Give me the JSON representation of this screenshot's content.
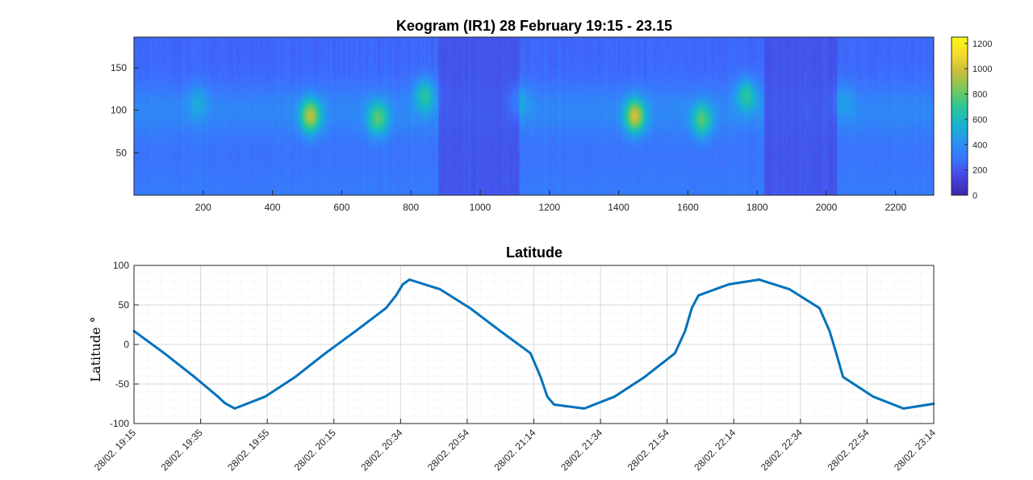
{
  "colors": {
    "series": "#0072BD",
    "axis": "#262626",
    "grid_major": "#d9d9d9",
    "grid_minor": "#ececec",
    "colormap": [
      "#3E26A8",
      "#4744E0",
      "#3C70FF",
      "#2A93F3",
      "#16B4D0",
      "#2BC69A",
      "#75C85E",
      "#C6BE3C",
      "#F6D92C",
      "#F9FB14"
    ]
  },
  "chart_data": [
    {
      "type": "heatmap",
      "title": "Keogram (IR1) 28 February 19:15 - 23.15",
      "xlabel": "",
      "ylabel": "",
      "xlim": [
        0,
        2310
      ],
      "ylim": [
        0,
        186
      ],
      "xticks": [
        200,
        400,
        600,
        800,
        1000,
        1200,
        1400,
        1600,
        1800,
        2000,
        2200
      ],
      "yticks": [
        50,
        100,
        150
      ],
      "colorbar": {
        "ticks": [
          0,
          200,
          400,
          600,
          800,
          1000,
          1200
        ],
        "range": [
          0,
          1250
        ]
      },
      "baseline_intensity": 250,
      "dark_bands": [
        [
          880,
          1115
        ],
        [
          1820,
          2030
        ]
      ],
      "band": {
        "y_center": 100,
        "y_half_width": 30,
        "intensity": 370
      },
      "lower_diffuse_intensity": 120,
      "hotspots": [
        {
          "x": 510,
          "y": 93,
          "peak": 950
        },
        {
          "x": 1447,
          "y": 93,
          "peak": 1000
        },
        {
          "x": 705,
          "y": 90,
          "peak": 800
        },
        {
          "x": 1640,
          "y": 88,
          "peak": 780
        },
        {
          "x": 840,
          "y": 118,
          "peak": 700
        },
        {
          "x": 1770,
          "y": 118,
          "peak": 720
        },
        {
          "x": 185,
          "y": 110,
          "peak": 520
        },
        {
          "x": 1115,
          "y": 110,
          "peak": 520
        },
        {
          "x": 2050,
          "y": 112,
          "peak": 480
        }
      ],
      "grid": false,
      "grid_on": false
    },
    {
      "type": "line",
      "title": "Latitude",
      "xlabel": "",
      "ylabel": "Latitude °",
      "ylim": [
        -100,
        100
      ],
      "yticks": [
        -100,
        -50,
        0,
        50,
        100
      ],
      "xticks": [
        "28/02. 19:15",
        "28/02. 19:35",
        "28/02. 19:55",
        "28/02. 20:15",
        "28/02. 20:34",
        "28/02. 20:54",
        "28/02. 21:14",
        "28/02. 21:34",
        "28/02. 21:54",
        "28/02. 22:14",
        "28/02. 22:34",
        "28/02. 22:54",
        "28/02. 23:14"
      ],
      "x_minutes": [
        0,
        9,
        18,
        25,
        27,
        30,
        39,
        48,
        57,
        66,
        75,
        78,
        80,
        82,
        91,
        100,
        109,
        118,
        121,
        123,
        125,
        134,
        143,
        152,
        161,
        164,
        166,
        168,
        177,
        186,
        195,
        204,
        207,
        209,
        211,
        220,
        229,
        238
      ],
      "values": [
        17,
        -11,
        -41,
        -66,
        -74,
        -81,
        -66,
        -41,
        -11,
        17,
        46,
        62,
        76,
        82,
        70,
        46,
        17,
        -11,
        -41,
        -66,
        -76,
        -81,
        -66,
        -41,
        -11,
        17,
        46,
        62,
        76,
        82,
        70,
        46,
        17,
        -11,
        -41,
        -66,
        -81,
        -75
      ],
      "grid": "major+minor",
      "grid_on": true
    }
  ]
}
